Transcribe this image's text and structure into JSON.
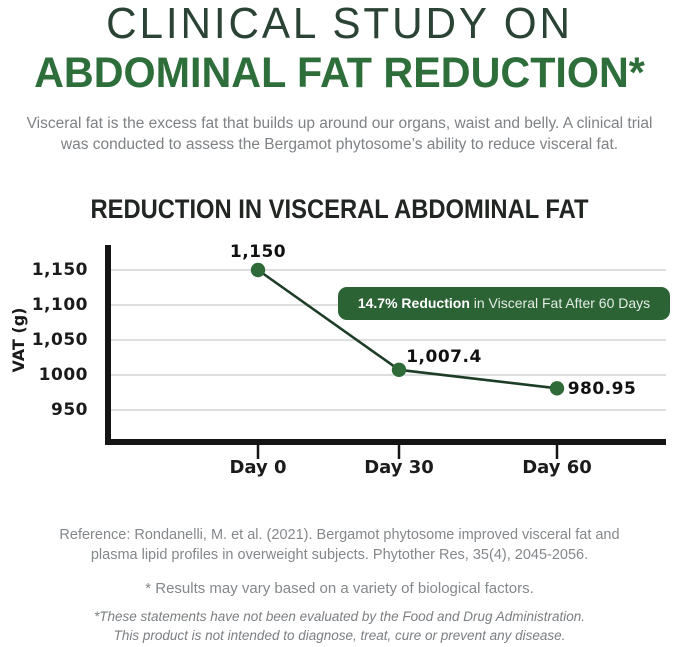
{
  "header": {
    "title_line1": "CLINICAL STUDY ON",
    "title_line2": "ABDOMINAL FAT REDUCTION*",
    "title_color": "#2b4334",
    "subtitle_color": "#2d6e3a"
  },
  "intro": {
    "text": "Visceral fat is the excess fat that builds up around our organs, waist and belly. A clinical trial was conducted to assess the Bergamot phytosome’s ability to reduce visceral fat."
  },
  "chart": {
    "badge_bold": "14.7% Reduction",
    "badge_rest": " in Visceral Fat After 60 Days",
    "badge_color": "#2c6335"
  },
  "chart_data": {
    "type": "line",
    "title": "REDUCTION IN VISCERAL ABDOMINAL FAT",
    "xlabel": "",
    "ylabel": "VAT (g)",
    "categories": [
      "Day 0",
      "Day 30",
      "Day 60"
    ],
    "values": [
      1150,
      1007.4,
      980.95
    ],
    "point_labels": [
      "1,150",
      "1,007.4",
      "980.95"
    ],
    "y_tick_values": [
      1150,
      1100,
      1050,
      1000,
      950
    ],
    "y_tick_labels": [
      "1,150",
      "1,100",
      "1,050",
      "1000",
      "950"
    ],
    "ylim": [
      900,
      1185
    ],
    "grid": "horizontal-only",
    "legend": "none",
    "annotation": "14.7% Reduction in Visceral Fat After 60 Days",
    "line_color": "#1e3d27",
    "point_color": "#2e6b38",
    "axis_color": "#151515",
    "grid_color": "#c9cbc9"
  },
  "footer": {
    "reference": "Reference: Rondanelli, M. et al. (2021). Bergamot phytosome improved visceral fat and plasma lipid profiles in overweight subjects. Phytother Res, 35(4), 2045-2056.",
    "results_note": "* Results may vary based on a variety of biological factors.",
    "fda_line1": "*These statements have not been evaluated by the Food and Drug Administration.",
    "fda_line2": "This product is not intended to diagnose, treat, cure or prevent any disease."
  }
}
